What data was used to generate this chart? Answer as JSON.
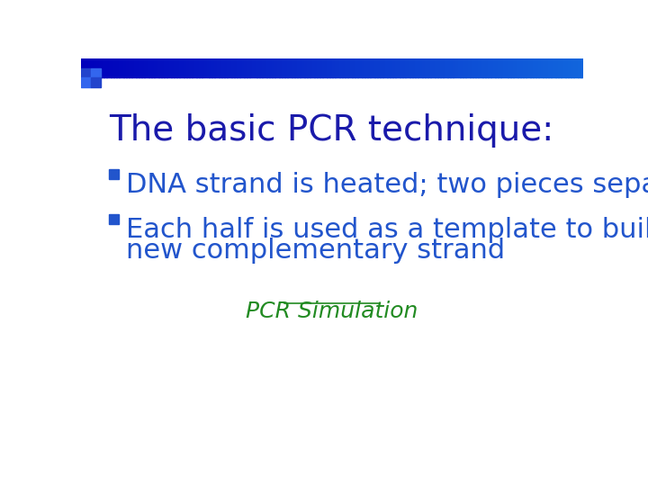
{
  "title": "The basic PCR technique:",
  "title_color": "#1a1aaa",
  "title_fontsize": 28,
  "bullet_color": "#2255cc",
  "bullet_square_color": "#2255cc",
  "bullet1": "DNA strand is heated; two pieces separate",
  "bullet2_line1": "Each half is used as a template to build a",
  "bullet2_line2": "new complementary strand",
  "link_text": "PCR Simulation",
  "link_color": "#228B22",
  "bullet_fontsize": 22,
  "link_fontsize": 18,
  "background_color": "#ffffff",
  "header_bar_color1": "#0000cc",
  "header_bar_color2": "#3399ff",
  "corner_square_color": "#2244bb"
}
